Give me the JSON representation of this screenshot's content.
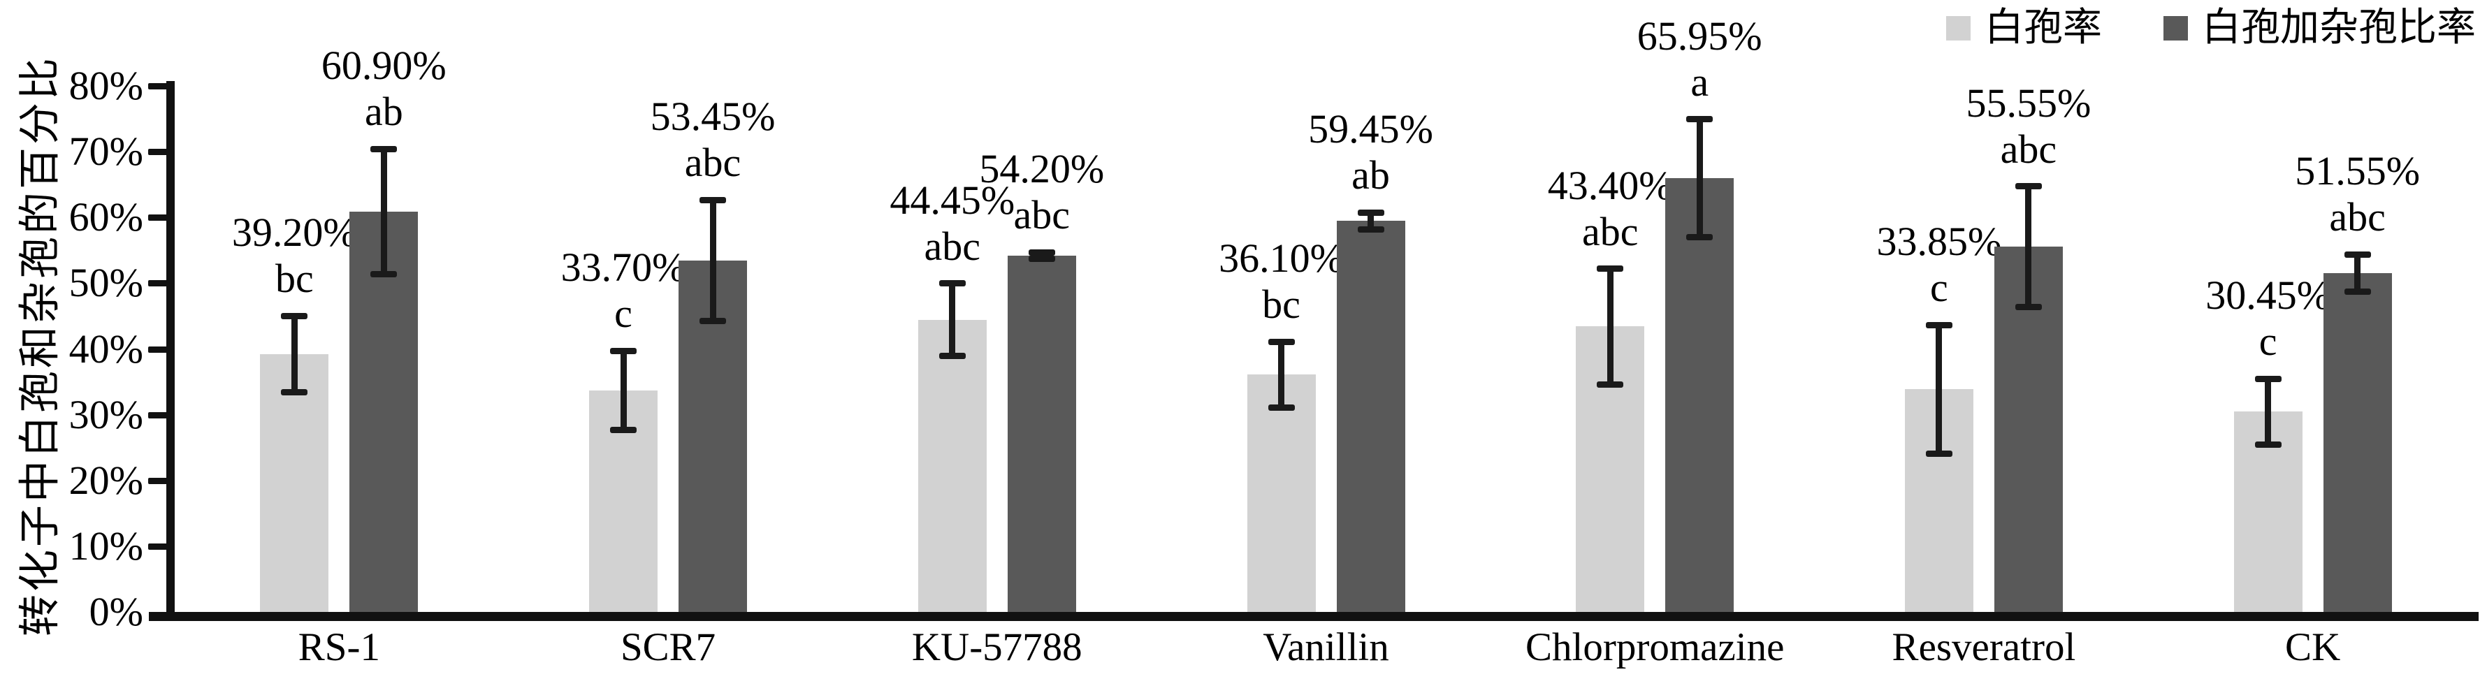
{
  "chart_data": {
    "type": "bar",
    "title": "",
    "ylabel": "转化子中白孢和杂孢的百分比",
    "xlabel": "",
    "categories": [
      "RS-1",
      "SCR7",
      "KU-57788",
      "Vanillin",
      "Chlorpromazine",
      "Resveratrol",
      "CK"
    ],
    "series": [
      {
        "name": "白孢率",
        "color": "#d2d2d2",
        "values": [
          39.2,
          33.7,
          44.45,
          36.1,
          43.4,
          33.85,
          30.45
        ],
        "value_labels": [
          "39.20%",
          "33.70%",
          "44.45%",
          "36.10%",
          "43.40%",
          "33.85%",
          "30.45%"
        ],
        "sig_letters": [
          "bc",
          "c",
          "abc",
          "bc",
          "abc",
          "c",
          "c"
        ],
        "error_bars": [
          5.8,
          6.0,
          5.5,
          5.0,
          8.8,
          9.8,
          5.0
        ]
      },
      {
        "name": "白孢加杂孢比率",
        "color": "#595959",
        "values": [
          60.9,
          53.45,
          54.2,
          59.45,
          65.95,
          55.55,
          51.55
        ],
        "value_labels": [
          "60.90%",
          "53.45%",
          "54.20%",
          "59.45%",
          "65.95%",
          "55.55%",
          "51.55%"
        ],
        "sig_letters": [
          "ab",
          "abc",
          "abc",
          "ab",
          "a",
          "abc",
          "abc"
        ],
        "error_bars": [
          9.5,
          9.2,
          0.5,
          1.3,
          9.0,
          9.2,
          2.8
        ]
      }
    ],
    "yticks": [
      "0%",
      "10%",
      "20%",
      "30%",
      "40%",
      "50%",
      "60%",
      "70%",
      "80%"
    ],
    "ylim": [
      0,
      80
    ],
    "grid": false,
    "legend_position": "top-right",
    "axis_color": "#111111"
  }
}
